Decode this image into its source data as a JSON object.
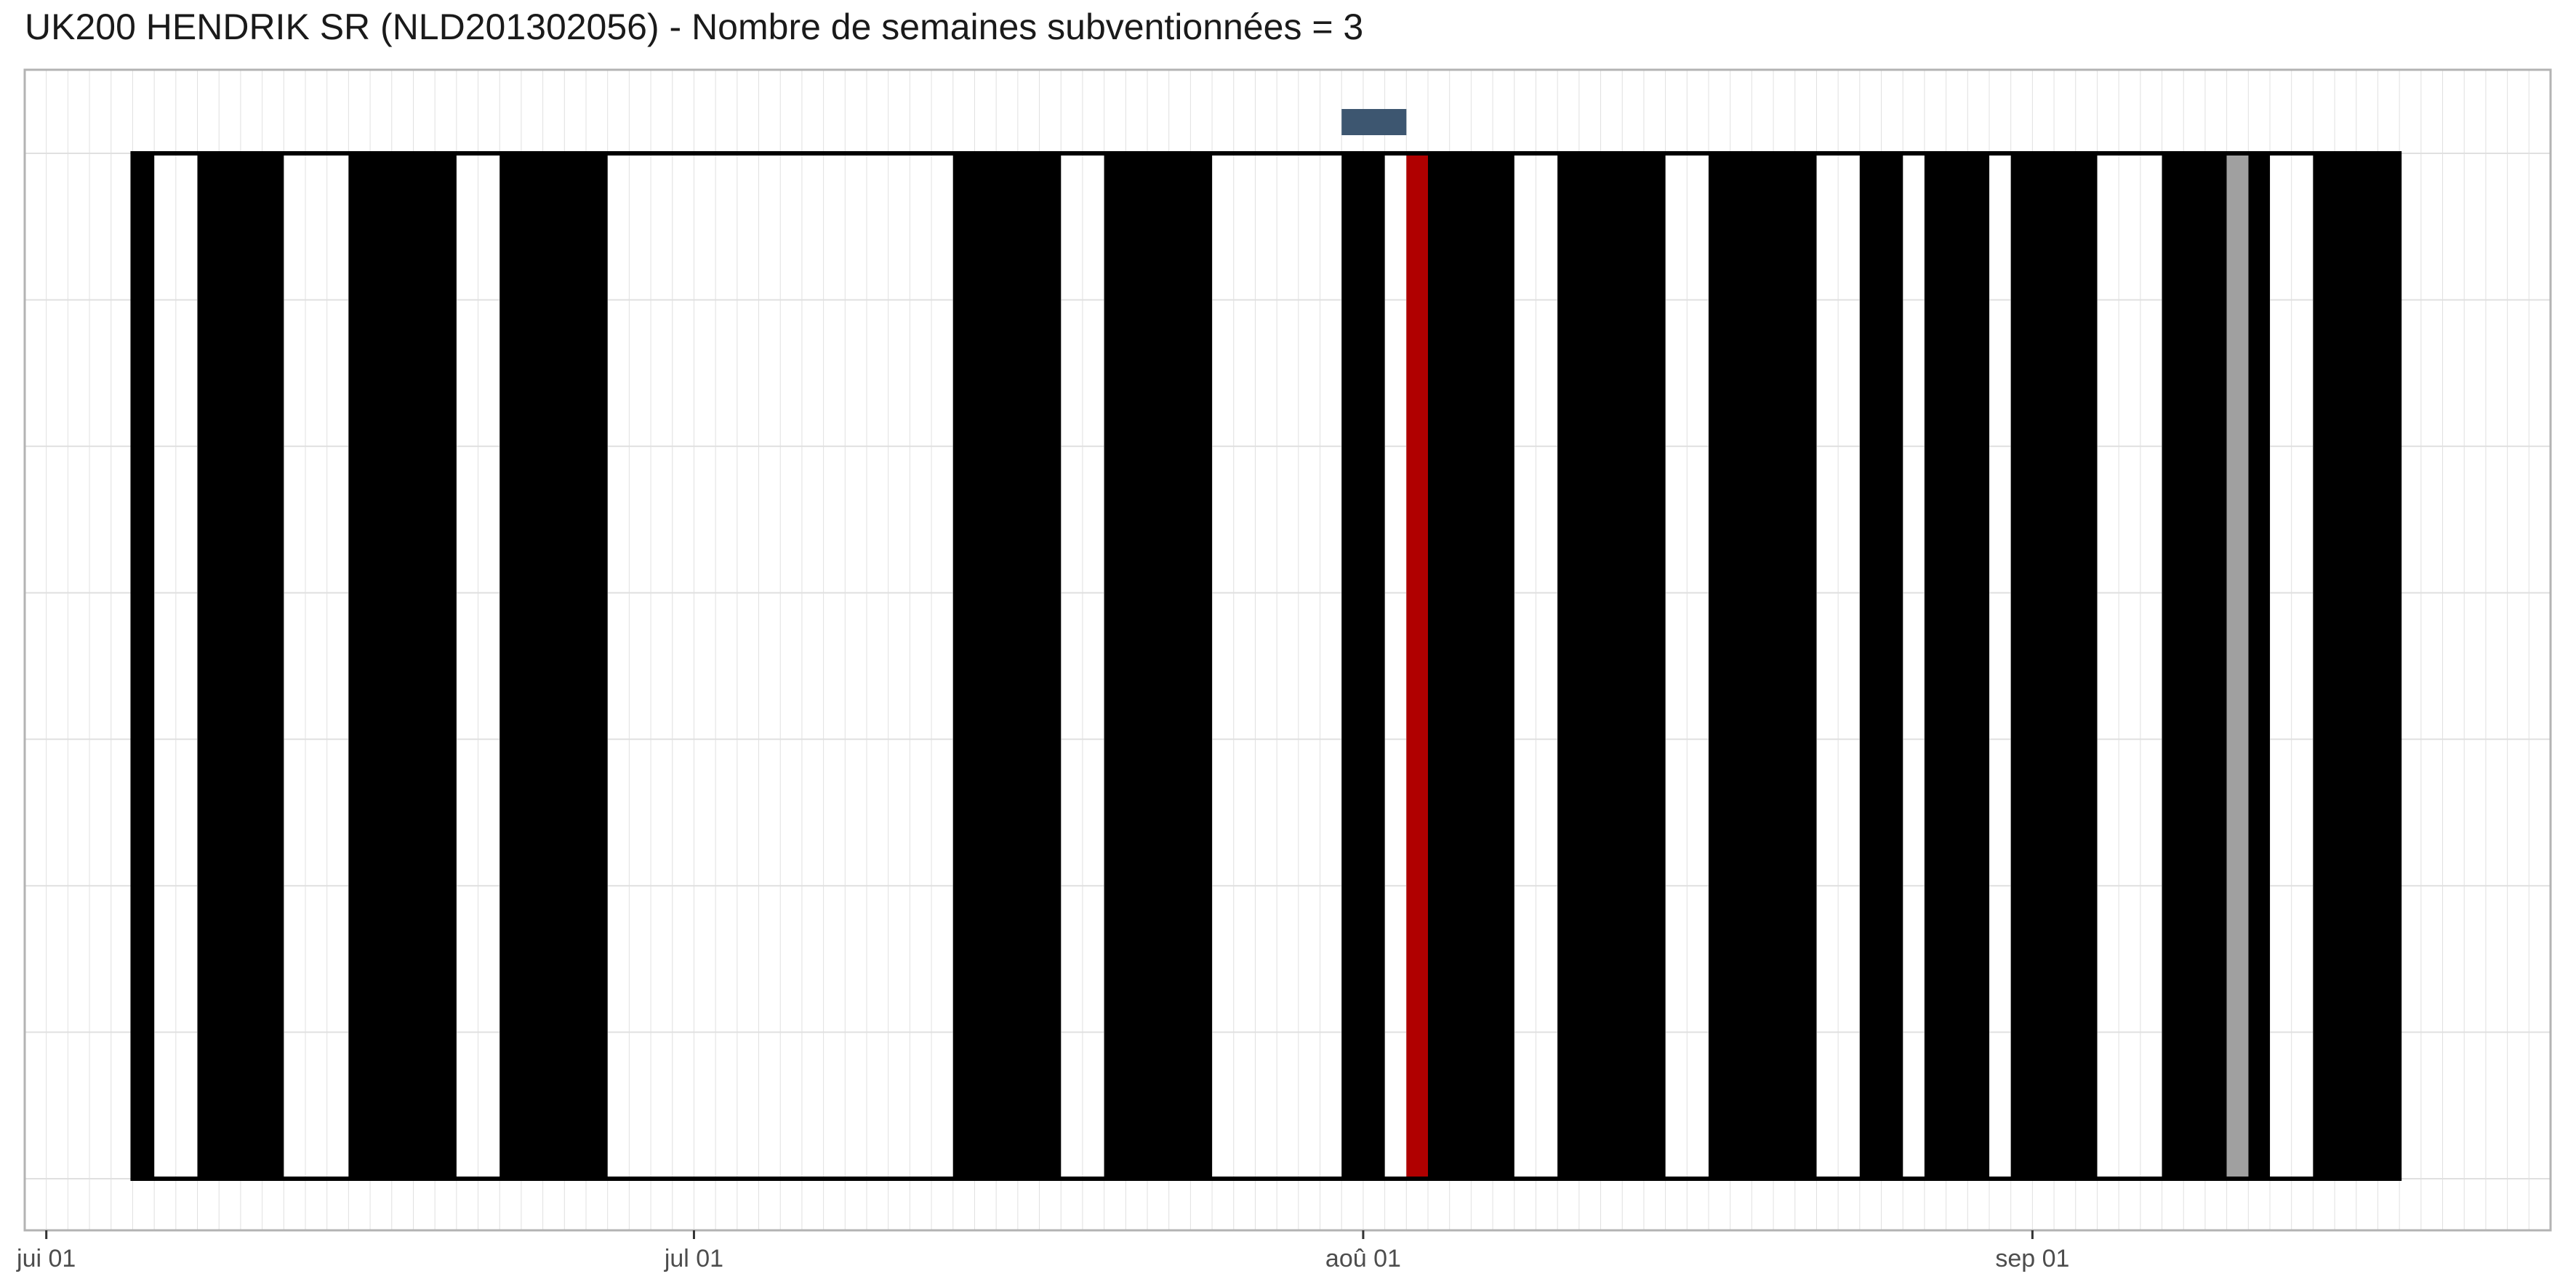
{
  "chart_data": {
    "type": "bar",
    "title": "UK200 HENDRIK SR (NLD201302056) - Nombre de semaines subventionnées = 3",
    "xlabel": "",
    "ylabel": "",
    "x_axis": {
      "type": "date",
      "range": [
        "2023-05-31",
        "2023-09-25"
      ],
      "tick_labels": [
        {
          "date": "2023-06-01",
          "label": "jui 01"
        },
        {
          "date": "2023-07-01",
          "label": "jul 01"
        },
        {
          "date": "2023-08-01",
          "label": "aoû 01"
        },
        {
          "date": "2023-09-01",
          "label": "sep 01"
        }
      ]
    },
    "grid": true,
    "colors": {
      "active": "#000000",
      "highlight_red": "#b00000",
      "highlight_grey": "#a0a0a0",
      "subsidy_marker": "#3d5670",
      "grid": "#e0e0e0"
    },
    "frame": {
      "start": "2023-06-05",
      "end": "2023-09-18"
    },
    "series": [
      {
        "color": "#000000",
        "intervals": [
          {
            "start": "2023-06-05",
            "end": "2023-06-06"
          },
          {
            "start": "2023-06-08",
            "end": "2023-06-12"
          },
          {
            "start": "2023-06-15",
            "end": "2023-06-20"
          },
          {
            "start": "2023-06-22",
            "end": "2023-06-27"
          },
          {
            "start": "2023-07-13",
            "end": "2023-07-18"
          },
          {
            "start": "2023-07-20",
            "end": "2023-07-25"
          },
          {
            "start": "2023-07-31",
            "end": "2023-08-02"
          },
          {
            "start": "2023-08-04",
            "end": "2023-08-08"
          },
          {
            "start": "2023-08-10",
            "end": "2023-08-15"
          },
          {
            "start": "2023-08-17",
            "end": "2023-08-22"
          },
          {
            "start": "2023-08-24",
            "end": "2023-08-26"
          },
          {
            "start": "2023-08-27",
            "end": "2023-08-30"
          },
          {
            "start": "2023-08-31",
            "end": "2023-09-04"
          },
          {
            "start": "2023-09-07",
            "end": "2023-09-10"
          },
          {
            "start": "2023-09-11",
            "end": "2023-09-12"
          },
          {
            "start": "2023-09-14",
            "end": "2023-09-18"
          }
        ]
      },
      {
        "color": "#b00000",
        "intervals": [
          {
            "start": "2023-08-03",
            "end": "2023-08-04"
          }
        ]
      },
      {
        "color": "#a0a0a0",
        "intervals": [
          {
            "start": "2023-09-10",
            "end": "2023-09-11"
          }
        ]
      },
      {
        "color": "#3d5670",
        "intervals": [
          {
            "start": "2023-07-31",
            "end": "2023-08-03"
          }
        ]
      }
    ]
  }
}
